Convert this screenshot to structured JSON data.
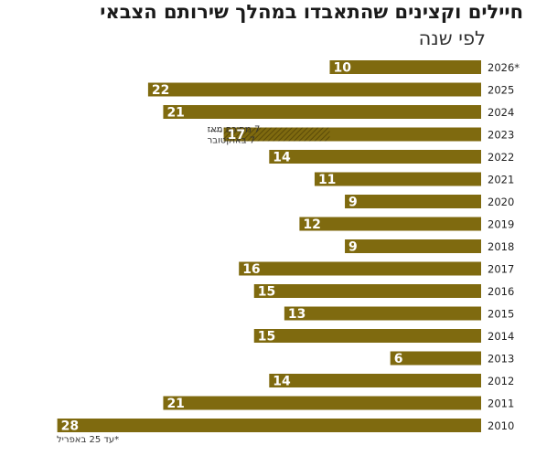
{
  "header": {
    "title": "חיילים וקצינים שהתאבדו במהלך שירותם הצבאי",
    "subtitle": "לפי שנה"
  },
  "colors": {
    "bar": "#7f6a0f",
    "label": "#ffffff",
    "axis_text": "#222222"
  },
  "chart_data": {
    "type": "bar",
    "orientation": "horizontal",
    "categories": [
      "2026*",
      "2025",
      "2024",
      "2023",
      "2022",
      "2021",
      "2020",
      "2019",
      "2018",
      "2017",
      "2016",
      "2015",
      "2014",
      "2013",
      "2012",
      "2011",
      "2010"
    ],
    "values": [
      10,
      22,
      21,
      17,
      14,
      11,
      9,
      12,
      9,
      16,
      15,
      13,
      15,
      6,
      14,
      21,
      28
    ],
    "highlight": {
      "category": "2023",
      "hatched_value": 7,
      "annotation_lines": [
        "7 מתוכם מאז",
        "7 באוקטובר"
      ]
    },
    "footnote": "*עד 25 באפריל"
  }
}
